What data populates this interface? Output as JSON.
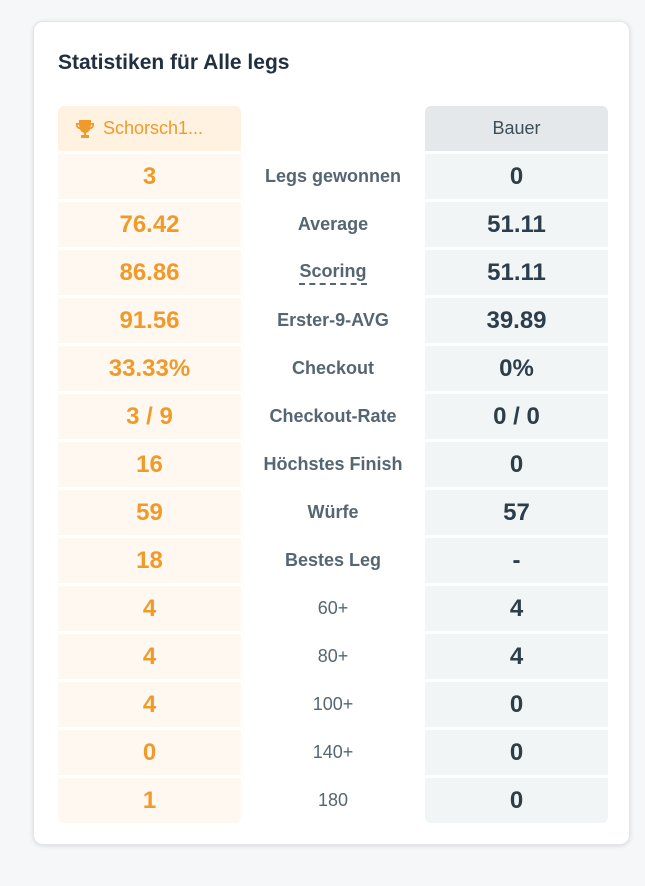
{
  "title": "Statistiken für Alle legs",
  "players": {
    "left": {
      "name": "Schorsch1...",
      "icon": "trophy-icon",
      "color": "#f09a2a"
    },
    "right": {
      "name": "Bauer"
    }
  },
  "rows": [
    {
      "label": "Legs gewonnen",
      "left": "3",
      "right": "0"
    },
    {
      "label": "Average",
      "left": "76.42",
      "right": "51.11"
    },
    {
      "label": "Scoring",
      "left": "86.86",
      "right": "51.11"
    },
    {
      "label": "Erster-9-AVG",
      "left": "91.56",
      "right": "39.89"
    },
    {
      "label": "Checkout",
      "left": "33.33%",
      "right": "0%"
    },
    {
      "label": "Checkout-Rate",
      "left": "3 / 9",
      "right": "0 / 0"
    },
    {
      "label": "Höchstes Finish",
      "left": "16",
      "right": "0"
    },
    {
      "label": "Würfe",
      "left": "59",
      "right": "57"
    },
    {
      "label": "Bestes Leg",
      "left": "18",
      "right": "-"
    },
    {
      "label": "60+",
      "left": "4",
      "right": "4"
    },
    {
      "label": "80+",
      "left": "4",
      "right": "4"
    },
    {
      "label": "100+",
      "left": "4",
      "right": "0"
    },
    {
      "label": "140+",
      "left": "0",
      "right": "0"
    },
    {
      "label": "180",
      "left": "1",
      "right": "0"
    }
  ]
}
